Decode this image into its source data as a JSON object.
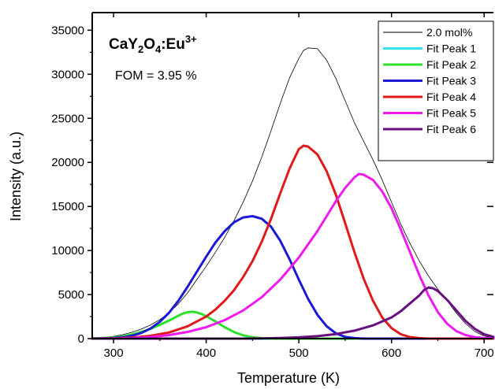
{
  "chart_data": {
    "type": "line",
    "title": "",
    "compound_label": {
      "base": "CaY",
      "sub1": "2",
      "mid": "O",
      "sub2": "4",
      "dopant": ":Eu",
      "sup": "3+"
    },
    "annotation": "FOM = 3.95 %",
    "xlabel": "Temperature (K)",
    "ylabel": "Intensity (a.u.)",
    "xlim": [
      277,
      710
    ],
    "ylim": [
      0,
      37000
    ],
    "x_ticks": [
      300,
      400,
      500,
      600,
      700
    ],
    "y_ticks": [
      0,
      5000,
      10000,
      15000,
      20000,
      25000,
      30000,
      35000
    ],
    "legend_position": "top-right",
    "grid": false,
    "series": [
      {
        "name": "2.0 mol%",
        "color": "#000000",
        "style": "thin",
        "points": [
          [
            277,
            60
          ],
          [
            290,
            140
          ],
          [
            300,
            260
          ],
          [
            310,
            450
          ],
          [
            320,
            720
          ],
          [
            330,
            1080
          ],
          [
            340,
            1550
          ],
          [
            350,
            2150
          ],
          [
            360,
            2950
          ],
          [
            370,
            3950
          ],
          [
            380,
            5200
          ],
          [
            390,
            6700
          ],
          [
            400,
            8200
          ],
          [
            410,
            9800
          ],
          [
            420,
            11500
          ],
          [
            430,
            13400
          ],
          [
            440,
            15500
          ],
          [
            450,
            17900
          ],
          [
            460,
            20600
          ],
          [
            470,
            23600
          ],
          [
            480,
            26700
          ],
          [
            490,
            29600
          ],
          [
            500,
            31800
          ],
          [
            505,
            32700
          ],
          [
            510,
            33000
          ],
          [
            520,
            32900
          ],
          [
            530,
            31600
          ],
          [
            540,
            29500
          ],
          [
            550,
            27000
          ],
          [
            560,
            24500
          ],
          [
            570,
            22400
          ],
          [
            580,
            20300
          ],
          [
            590,
            18000
          ],
          [
            600,
            15500
          ],
          [
            610,
            13000
          ],
          [
            620,
            10800
          ],
          [
            630,
            8800
          ],
          [
            640,
            7100
          ],
          [
            650,
            5600
          ],
          [
            660,
            4300
          ],
          [
            670,
            2900
          ],
          [
            680,
            1700
          ],
          [
            690,
            800
          ],
          [
            700,
            300
          ],
          [
            710,
            80
          ]
        ]
      },
      {
        "name": "Fit Peak 1",
        "color": "#33e0f0",
        "style": "thick",
        "points": [
          [
            277,
            0
          ],
          [
            710,
            0
          ]
        ]
      },
      {
        "name": "Fit Peak 2",
        "color": "#2de02d",
        "style": "thick",
        "points": [
          [
            277,
            20
          ],
          [
            290,
            60
          ],
          [
            300,
            130
          ],
          [
            310,
            260
          ],
          [
            320,
            470
          ],
          [
            330,
            760
          ],
          [
            340,
            1120
          ],
          [
            350,
            1560
          ],
          [
            360,
            2060
          ],
          [
            370,
            2600
          ],
          [
            375,
            2850
          ],
          [
            380,
            3000
          ],
          [
            385,
            3050
          ],
          [
            390,
            2960
          ],
          [
            395,
            2800
          ],
          [
            400,
            2550
          ],
          [
            410,
            1950
          ],
          [
            420,
            1300
          ],
          [
            430,
            750
          ],
          [
            440,
            370
          ],
          [
            450,
            150
          ],
          [
            460,
            50
          ],
          [
            470,
            10
          ],
          [
            480,
            0
          ],
          [
            710,
            0
          ]
        ]
      },
      {
        "name": "Fit Peak 3",
        "color": "#1a1ad6",
        "style": "thick",
        "points": [
          [
            277,
            0
          ],
          [
            290,
            20
          ],
          [
            300,
            60
          ],
          [
            310,
            150
          ],
          [
            320,
            330
          ],
          [
            330,
            640
          ],
          [
            340,
            1150
          ],
          [
            350,
            1900
          ],
          [
            360,
            2950
          ],
          [
            370,
            4300
          ],
          [
            380,
            5900
          ],
          [
            390,
            7600
          ],
          [
            400,
            9300
          ],
          [
            410,
            10900
          ],
          [
            420,
            12200
          ],
          [
            430,
            13200
          ],
          [
            440,
            13750
          ],
          [
            450,
            13900
          ],
          [
            460,
            13600
          ],
          [
            470,
            12700
          ],
          [
            480,
            11100
          ],
          [
            490,
            9000
          ],
          [
            500,
            6700
          ],
          [
            510,
            4500
          ],
          [
            520,
            2700
          ],
          [
            530,
            1400
          ],
          [
            540,
            600
          ],
          [
            550,
            200
          ],
          [
            560,
            50
          ],
          [
            570,
            0
          ],
          [
            710,
            0
          ]
        ]
      },
      {
        "name": "Fit Peak 4",
        "color": "#e01a1a",
        "style": "thick",
        "points": [
          [
            277,
            0
          ],
          [
            300,
            40
          ],
          [
            320,
            120
          ],
          [
            340,
            320
          ],
          [
            360,
            700
          ],
          [
            380,
            1400
          ],
          [
            400,
            2500
          ],
          [
            410,
            3300
          ],
          [
            420,
            4300
          ],
          [
            430,
            5500
          ],
          [
            440,
            7000
          ],
          [
            450,
            8800
          ],
          [
            460,
            11000
          ],
          [
            470,
            13600
          ],
          [
            480,
            16500
          ],
          [
            490,
            19300
          ],
          [
            500,
            21500
          ],
          [
            505,
            21900
          ],
          [
            510,
            21800
          ],
          [
            520,
            20900
          ],
          [
            530,
            19000
          ],
          [
            540,
            16300
          ],
          [
            550,
            13100
          ],
          [
            560,
            9800
          ],
          [
            570,
            6800
          ],
          [
            580,
            4300
          ],
          [
            590,
            2400
          ],
          [
            600,
            1200
          ],
          [
            610,
            500
          ],
          [
            620,
            180
          ],
          [
            630,
            50
          ],
          [
            640,
            0
          ],
          [
            710,
            0
          ]
        ]
      },
      {
        "name": "Fit Peak 5",
        "color": "#ee1aee",
        "style": "thick",
        "points": [
          [
            277,
            0
          ],
          [
            300,
            20
          ],
          [
            320,
            70
          ],
          [
            340,
            180
          ],
          [
            360,
            400
          ],
          [
            380,
            760
          ],
          [
            400,
            1300
          ],
          [
            420,
            2100
          ],
          [
            440,
            3200
          ],
          [
            460,
            4700
          ],
          [
            480,
            6700
          ],
          [
            500,
            9200
          ],
          [
            520,
            12200
          ],
          [
            530,
            13900
          ],
          [
            540,
            15600
          ],
          [
            550,
            17100
          ],
          [
            560,
            18300
          ],
          [
            565,
            18700
          ],
          [
            570,
            18600
          ],
          [
            580,
            18000
          ],
          [
            590,
            16700
          ],
          [
            600,
            14800
          ],
          [
            610,
            12400
          ],
          [
            620,
            9800
          ],
          [
            630,
            7200
          ],
          [
            640,
            4900
          ],
          [
            650,
            3000
          ],
          [
            660,
            1700
          ],
          [
            670,
            850
          ],
          [
            680,
            400
          ],
          [
            690,
            160
          ],
          [
            700,
            60
          ],
          [
            710,
            20
          ]
        ]
      },
      {
        "name": "Fit Peak 6",
        "color": "#6a0f82",
        "style": "thick",
        "points": [
          [
            277,
            0
          ],
          [
            440,
            0
          ],
          [
            460,
            20
          ],
          [
            480,
            60
          ],
          [
            500,
            140
          ],
          [
            520,
            280
          ],
          [
            540,
            520
          ],
          [
            560,
            900
          ],
          [
            580,
            1500
          ],
          [
            600,
            2400
          ],
          [
            610,
            3100
          ],
          [
            620,
            4000
          ],
          [
            630,
            4900
          ],
          [
            635,
            5500
          ],
          [
            640,
            5800
          ],
          [
            645,
            5700
          ],
          [
            650,
            5400
          ],
          [
            660,
            4400
          ],
          [
            670,
            3200
          ],
          [
            680,
            2000
          ],
          [
            690,
            1100
          ],
          [
            700,
            500
          ],
          [
            710,
            200
          ]
        ]
      }
    ]
  }
}
